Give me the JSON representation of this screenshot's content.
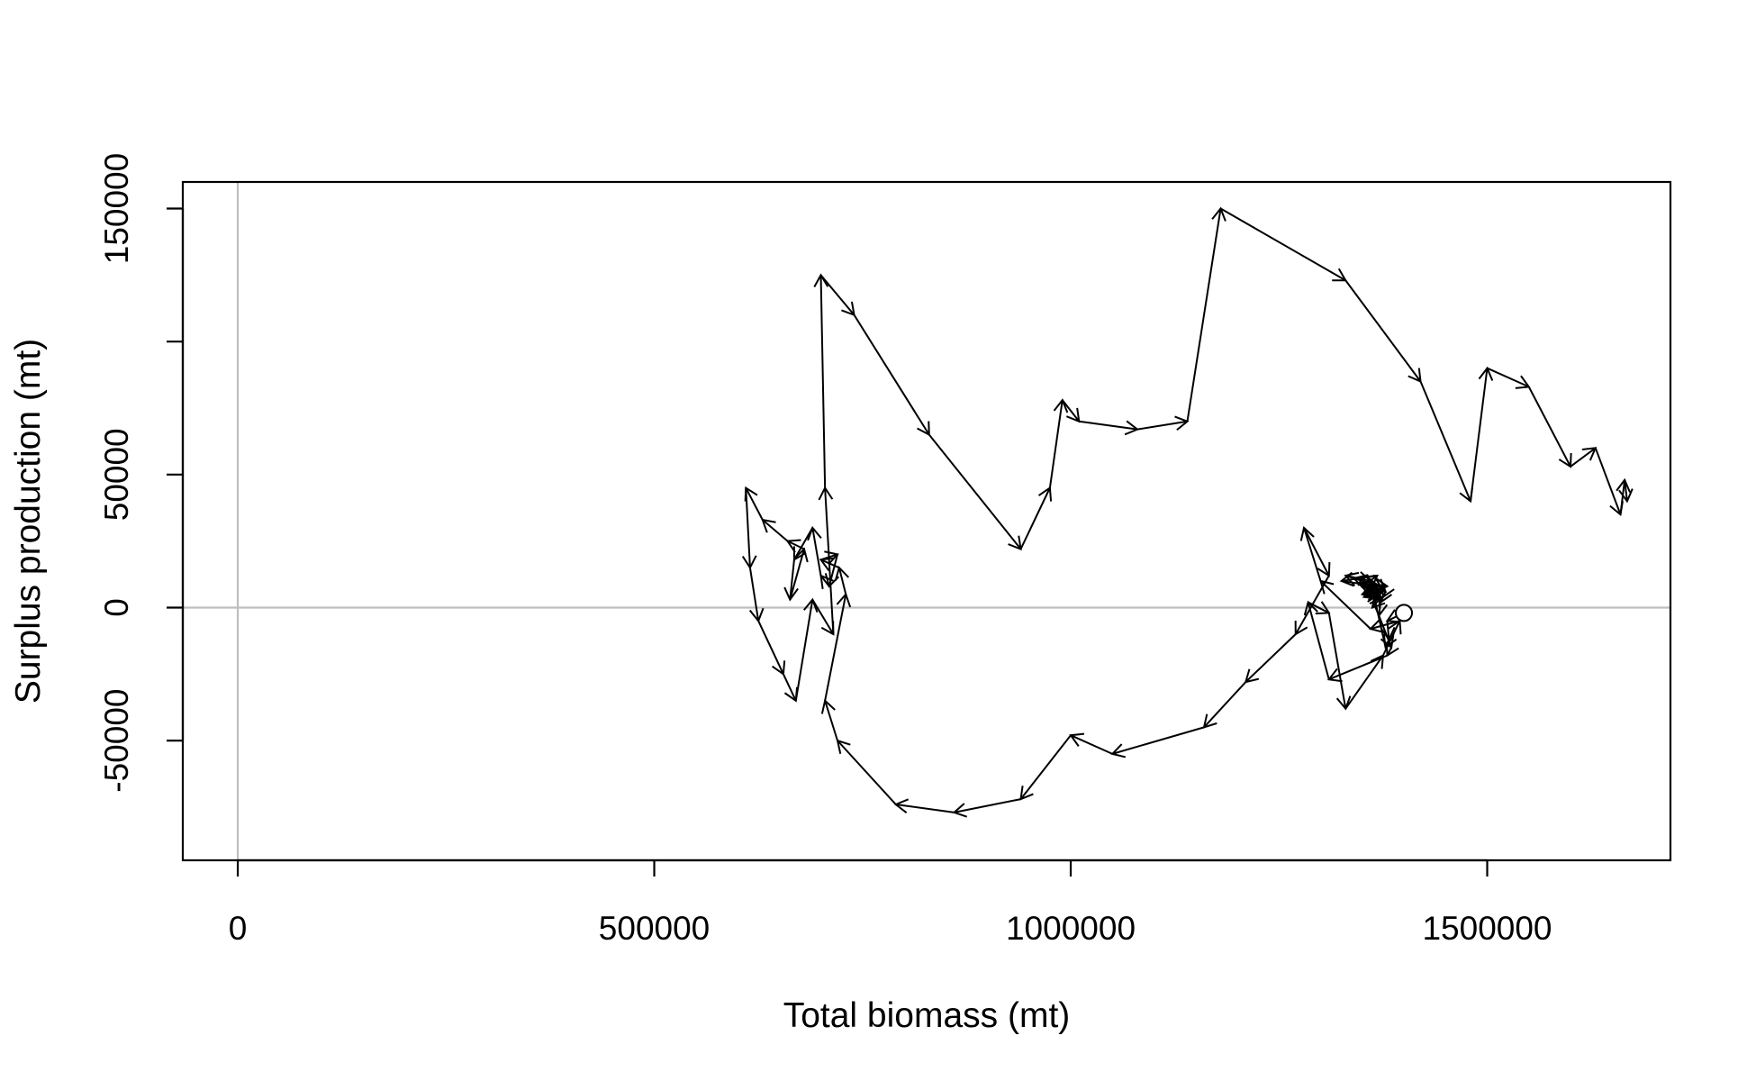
{
  "chart_data": {
    "type": "line",
    "title": "",
    "xlabel": "Total biomass (mt)",
    "ylabel": "Surplus production (mt)",
    "xlim": [
      -66000,
      1720000
    ],
    "ylim": [
      -95000,
      160000
    ],
    "x_ticks": [
      0,
      500000,
      1000000,
      1500000
    ],
    "x_tick_labels": [
      "0",
      "500000",
      "1000000",
      "1500000"
    ],
    "y_ticks": [
      -50000,
      0,
      50000,
      100000,
      150000
    ],
    "y_tick_labels": [
      "-50000",
      "0",
      "50000",
      "",
      "150000"
    ],
    "reference_lines": {
      "x": 0,
      "y": 0,
      "color": "#bebebe"
    },
    "grid": false,
    "legend": "none",
    "line_color": "#000000",
    "start_marker": "open-circle",
    "series": [
      {
        "x": [
          1400000,
          1380000,
          1382000,
          1378000,
          1360000,
          1372000,
          1340000,
          1330000,
          1360000,
          1345000,
          1380000,
          1350000,
          1370000,
          1355000,
          1376000,
          1352000,
          1373000,
          1362000,
          1370000,
          1350000,
          1368000,
          1325000,
          1370000,
          1378000,
          1375000,
          1372000,
          1370000,
          1385000,
          1380000,
          1310000,
          1285000,
          1310000,
          1330000,
          1375000,
          1395000,
          1360000,
          1300000,
          1280000,
          1310000,
          1270000,
          1210000,
          1160000,
          1050000,
          1000000,
          940000,
          860000,
          790000,
          720000,
          705000,
          730000,
          722000,
          700000,
          720000,
          710000,
          700000,
          690000,
          668000,
          663000,
          680000,
          660000,
          630000,
          610000,
          615000,
          625000,
          655000,
          670000,
          690000,
          715000,
          705000,
          700000,
          740000,
          830000,
          940000,
          975000,
          990000,
          1010000,
          1080000,
          1140000,
          1180000,
          1330000,
          1420000,
          1480000,
          1500000,
          1550000,
          1600000,
          1630000,
          1660000,
          1665000,
          1668000
        ],
        "y": [
          -2000,
          -5000,
          -12000,
          -15000,
          10000,
          8000,
          11000,
          12000,
          10000,
          9000,
          8000,
          5000,
          6000,
          4000,
          7000,
          4000,
          4000,
          0,
          5000,
          8000,
          12000,
          10000,
          8000,
          6000,
          4000,
          2000,
          -3000,
          -15000,
          -18000,
          -27000,
          2000,
          -2000,
          -38000,
          -18000,
          -5000,
          -8000,
          10000,
          30000,
          12000,
          -10000,
          -28000,
          -45000,
          -55000,
          -48000,
          -72000,
          -77000,
          -74000,
          -50000,
          -35000,
          5000,
          15000,
          18000,
          20000,
          8000,
          12000,
          30000,
          18000,
          3000,
          22000,
          25000,
          33000,
          45000,
          15000,
          -5000,
          -25000,
          -35000,
          3000,
          -10000,
          45000,
          125000,
          110000,
          65000,
          22000,
          45000,
          78000,
          70000,
          67000,
          70000,
          150000,
          123000,
          85000,
          40000,
          90000,
          83000,
          53000,
          60000,
          35000,
          48000,
          40000
        ]
      }
    ]
  }
}
